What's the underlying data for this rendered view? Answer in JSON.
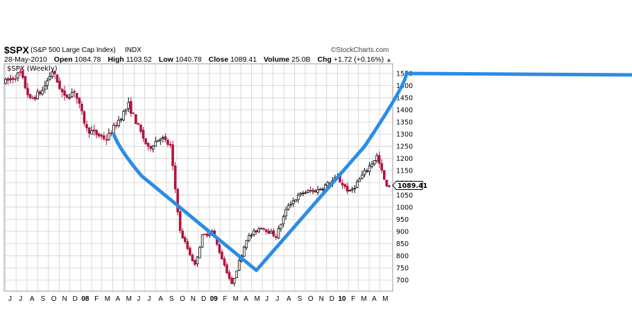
{
  "header": {
    "symbol": "$SPX",
    "name": "(S&P 500 Large Cap Index)",
    "exchange": "INDX",
    "brand": "©StockCharts.com",
    "date": "28-May-2010",
    "open_label": "Open",
    "open": "1084.78",
    "high_label": "High",
    "high": "1103.52",
    "low_label": "Low",
    "low": "1040.78",
    "close_label": "Close",
    "close": "1089.41",
    "volume_label": "Volume",
    "volume": "25.0B",
    "chg_label": "Chg",
    "chg": "+1.72 (+0.16%)",
    "chg_arrow": "▲"
  },
  "colors": {
    "up_bar": "#000000",
    "down_bar": "#b0143c",
    "overlay_line": "#2b8de6",
    "grid": "#cfcfcf"
  },
  "chart_data": {
    "type": "candlestick",
    "panel_label": "$SPX (Weekly)",
    "last_value_label": "1089.41",
    "y_ticks": [
      700,
      750,
      800,
      850,
      900,
      950,
      1000,
      1050,
      1100,
      1150,
      1200,
      1250,
      1300,
      1350,
      1400,
      1450,
      1500,
      1550
    ],
    "x_tick_labels": [
      "J",
      "J",
      "A",
      "S",
      "O",
      "N",
      "D",
      "08",
      "F",
      "M",
      "A",
      "M",
      "J",
      "J",
      "A",
      "S",
      "O",
      "N",
      "D",
      "09",
      "F",
      "M",
      "A",
      "M",
      "J",
      "J",
      "A",
      "S",
      "O",
      "N",
      "D",
      "10",
      "F",
      "M",
      "A",
      "M"
    ],
    "year_labels": [
      "08",
      "09",
      "10"
    ],
    "ylim": [
      660,
      1580
    ],
    "price_path": [
      [
        "2007-06-01",
        1515
      ],
      [
        "2007-07-13",
        1550
      ],
      [
        "2007-08-10",
        1440
      ],
      [
        "2007-09-14",
        1480
      ],
      [
        "2007-10-12",
        1560
      ],
      [
        "2007-11-16",
        1450
      ],
      [
        "2007-12-14",
        1480
      ],
      [
        "2008-01-18",
        1320
      ],
      [
        "2008-03-14",
        1280
      ],
      [
        "2008-05-16",
        1420
      ],
      [
        "2008-07-11",
        1240
      ],
      [
        "2008-08-15",
        1290
      ],
      [
        "2008-09-12",
        1250
      ],
      [
        "2008-10-10",
        900
      ],
      [
        "2008-11-21",
        760
      ],
      [
        "2008-12-12",
        880
      ],
      [
        "2009-01-09",
        900
      ],
      [
        "2009-03-06",
        680
      ],
      [
        "2009-04-17",
        870
      ],
      [
        "2009-05-29",
        920
      ],
      [
        "2009-07-10",
        880
      ],
      [
        "2009-08-14",
        1010
      ],
      [
        "2009-09-25",
        1060
      ],
      [
        "2009-11-06",
        1070
      ],
      [
        "2009-12-31",
        1120
      ],
      [
        "2010-02-05",
        1060
      ],
      [
        "2010-04-23",
        1210
      ],
      [
        "2010-05-21",
        1080
      ],
      [
        "2010-05-28",
        1089
      ]
    ],
    "overlay_line": [
      [
        "2008-04-04",
        1300
      ],
      [
        "2009-05-15",
        740
      ],
      [
        "2010-03-19",
        1250
      ],
      [
        "2010-07-16",
        1550
      ]
    ]
  }
}
